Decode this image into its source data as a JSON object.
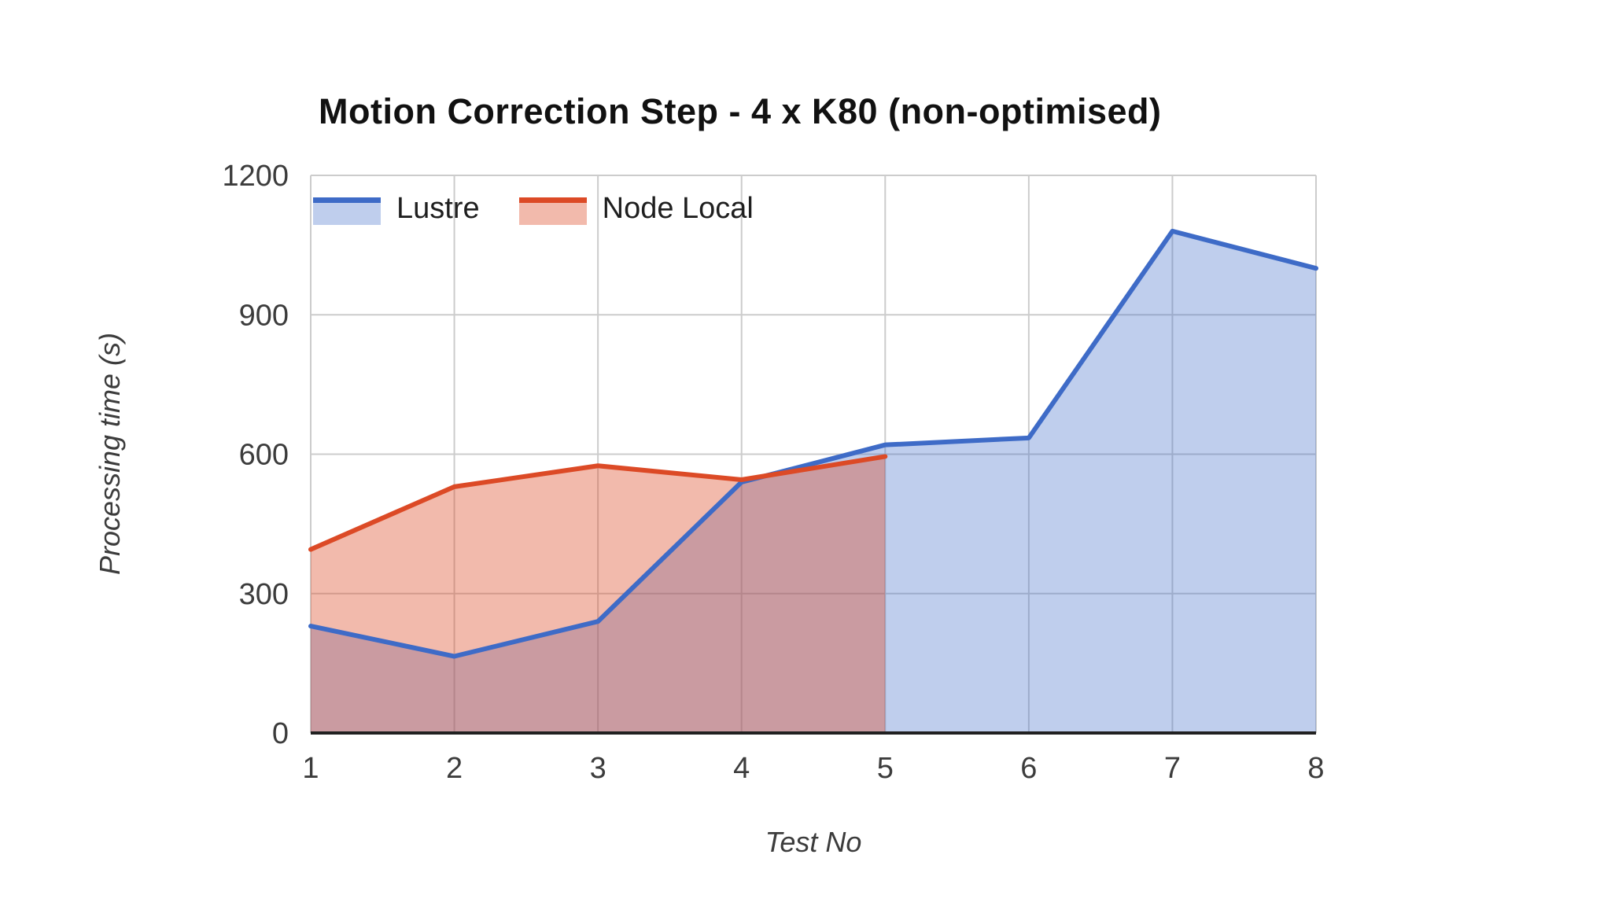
{
  "title": "Motion Correction Step - 4 x K80 (non-optimised)",
  "chart_data": {
    "type": "area",
    "title": "Motion Correction Step - 4 x K80 (non-optimised)",
    "xlabel": "Test No",
    "ylabel": "Processing time (s)",
    "x": [
      1,
      2,
      3,
      4,
      5,
      6,
      7,
      8
    ],
    "x_ticks": [
      1,
      2,
      3,
      4,
      5,
      6,
      7,
      8
    ],
    "y_ticks": [
      0,
      300,
      600,
      900,
      1200
    ],
    "xlim": [
      1,
      8
    ],
    "ylim": [
      0,
      1200
    ],
    "grid": true,
    "legend_position": "top-left-inside",
    "series": [
      {
        "name": "Lustre",
        "color": "#3e6bc7",
        "fill_opacity": 0.33,
        "values": [
          230,
          165,
          240,
          540,
          620,
          635,
          1080,
          1000
        ]
      },
      {
        "name": "Node Local",
        "color": "#dc4a26",
        "fill_opacity": 0.38,
        "values": [
          395,
          530,
          575,
          545,
          595
        ]
      }
    ],
    "colors": {
      "gridline": "#cccccc",
      "baseline": "#212121",
      "tick_label": "#3c3c3c"
    }
  }
}
